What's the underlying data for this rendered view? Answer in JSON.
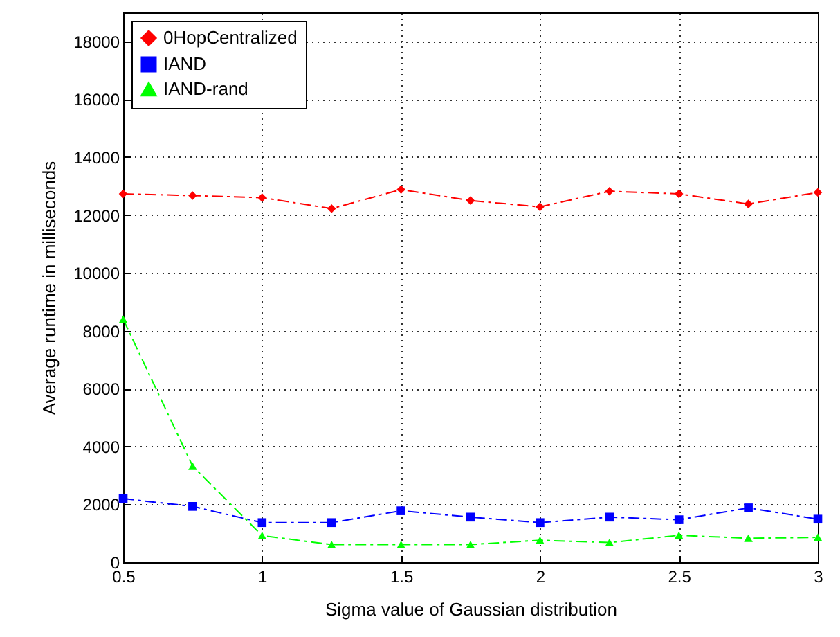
{
  "chart_data": {
    "type": "line",
    "xlabel": "Sigma value of Gaussian distribution",
    "ylabel": "Average runtime in milliseconds",
    "x": [
      0.5,
      0.75,
      1,
      1.25,
      1.5,
      1.75,
      2,
      2.25,
      2.5,
      2.75,
      3
    ],
    "series": [
      {
        "name": "0HopCentralized",
        "color": "#ff0000",
        "marker": "diamond",
        "values": [
          12730,
          12670,
          12600,
          12220,
          12880,
          12500,
          12280,
          12820,
          12730,
          12380,
          12780
        ]
      },
      {
        "name": "IAND",
        "color": "#0000ff",
        "marker": "square",
        "values": [
          2200,
          1930,
          1370,
          1370,
          1780,
          1560,
          1370,
          1560,
          1470,
          1880,
          1490
        ]
      },
      {
        "name": "IAND-rand",
        "color": "#00ff00",
        "marker": "triangle",
        "values": [
          8400,
          3320,
          920,
          610,
          610,
          610,
          760,
          680,
          930,
          830,
          860
        ]
      }
    ],
    "xlim": [
      0.5,
      3
    ],
    "xticks": [
      0.5,
      1,
      1.5,
      2,
      2.5,
      3
    ],
    "ylim": [
      0,
      19000
    ],
    "yticks": [
      0,
      2000,
      4000,
      6000,
      8000,
      10000,
      12000,
      14000,
      16000,
      18000
    ],
    "grid": true,
    "legend": "top left",
    "line_style": "dashdot"
  }
}
